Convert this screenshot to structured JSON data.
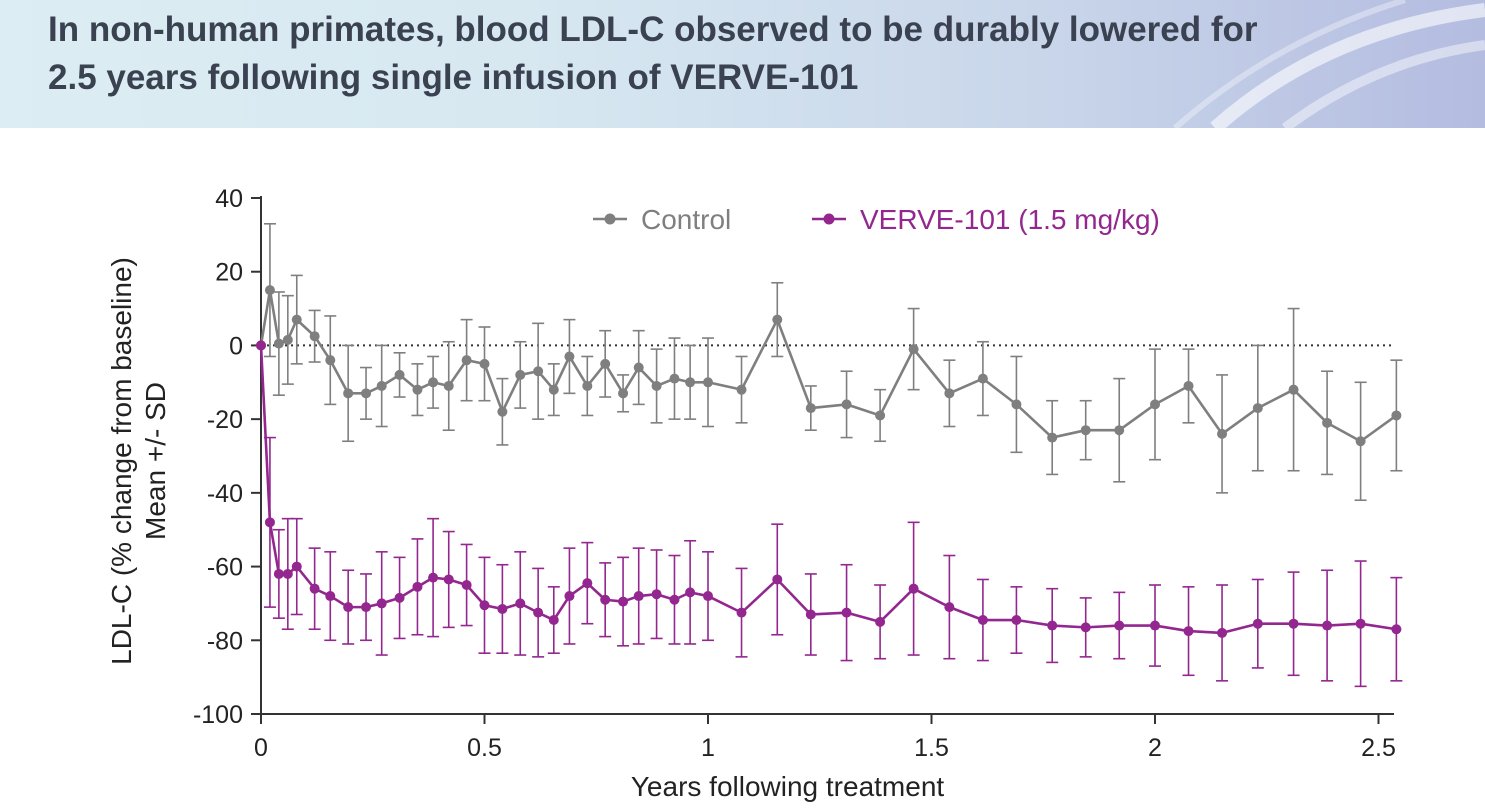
{
  "header": {
    "title_line1": "In non-human primates, blood LDL-C observed to be durably lowered for",
    "title_line2": "2.5 years following single infusion of VERVE-101"
  },
  "chart_data": {
    "type": "line",
    "xlabel": "Years following treatment",
    "ylabel_line1": "LDL-C (% change from baseline)",
    "ylabel_line2": "Mean +/- SD",
    "xlim": [
      0,
      2.55
    ],
    "ylim": [
      -100,
      40
    ],
    "xticks": [
      0,
      0.5,
      1,
      1.5,
      2,
      2.5
    ],
    "yticks": [
      40,
      20,
      0,
      -20,
      -40,
      -60,
      -80,
      -100
    ],
    "reference_line": 0,
    "legend_position": "top-center",
    "series": [
      {
        "name": "Control",
        "color": "#7f7f7f",
        "x": [
          0,
          0.02,
          0.04,
          0.06,
          0.08,
          0.12,
          0.155,
          0.195,
          0.235,
          0.27,
          0.31,
          0.35,
          0.385,
          0.42,
          0.46,
          0.5,
          0.54,
          0.58,
          0.62,
          0.655,
          0.69,
          0.73,
          0.77,
          0.81,
          0.845,
          0.885,
          0.925,
          0.96,
          1.0,
          1.075,
          1.155,
          1.23,
          1.31,
          1.385,
          1.46,
          1.54,
          1.615,
          1.69,
          1.77,
          1.845,
          1.92,
          2.0,
          2.075,
          2.15,
          2.23,
          2.31,
          2.385,
          2.46,
          2.54
        ],
        "y": [
          0,
          15,
          0.5,
          1.5,
          7,
          2.5,
          -4,
          -13,
          -13,
          -11,
          -8,
          -12,
          -10,
          -11,
          -4,
          -5,
          -18,
          -8,
          -7,
          -12,
          -3,
          -11,
          -5,
          -13,
          -6,
          -11,
          -9,
          -10,
          -10,
          -12,
          7,
          -17,
          -16,
          -19,
          -1,
          -13,
          -9,
          -16,
          -25,
          -23,
          -23,
          -16,
          -11,
          -24,
          -17,
          -12,
          -21,
          -26,
          -19
        ],
        "sd": [
          0,
          18,
          14,
          12,
          12,
          7,
          12,
          13,
          7,
          11,
          6,
          7,
          7,
          12,
          11,
          10,
          9,
          9,
          13,
          7,
          10,
          8,
          9,
          5,
          10,
          10,
          11,
          10,
          12,
          9,
          10,
          6,
          9,
          7,
          11,
          9,
          10,
          13,
          10,
          8,
          14,
          15,
          10,
          16,
          17,
          22,
          14,
          16,
          15
        ]
      },
      {
        "name": "VERVE-101 (1.5 mg/kg)",
        "color": "#93278f",
        "x": [
          0,
          0.02,
          0.04,
          0.06,
          0.08,
          0.12,
          0.155,
          0.195,
          0.235,
          0.27,
          0.31,
          0.35,
          0.385,
          0.42,
          0.46,
          0.5,
          0.54,
          0.58,
          0.62,
          0.655,
          0.69,
          0.73,
          0.77,
          0.81,
          0.845,
          0.885,
          0.925,
          0.96,
          1.0,
          1.075,
          1.155,
          1.23,
          1.31,
          1.385,
          1.46,
          1.54,
          1.615,
          1.69,
          1.77,
          1.845,
          1.92,
          2.0,
          2.075,
          2.15,
          2.23,
          2.31,
          2.385,
          2.46,
          2.54
        ],
        "y": [
          0,
          -48,
          -62,
          -62,
          -60,
          -66,
          -68,
          -71,
          -71,
          -70,
          -68.5,
          -65.5,
          -63,
          -63.5,
          -65,
          -70.5,
          -71.5,
          -70,
          -72.5,
          -74.5,
          -68,
          -64.5,
          -69,
          -69.5,
          -68,
          -67.5,
          -69,
          -67,
          -68,
          -72.5,
          -63.5,
          -73,
          -72.5,
          -75,
          -66,
          -71,
          -74.5,
          -74.5,
          -76,
          -76.5,
          -76,
          -76,
          -77.5,
          -78,
          -75.5,
          -75.5,
          -76,
          -75.5,
          -77
        ],
        "sd": [
          0,
          23,
          12,
          15,
          13,
          11,
          12,
          10,
          9,
          14,
          11,
          13,
          16,
          13,
          11,
          13,
          12,
          14,
          12,
          9,
          13,
          11,
          10,
          12,
          13,
          12,
          12,
          14,
          12,
          12,
          15,
          11,
          13,
          10,
          18,
          14,
          11,
          9,
          10,
          8,
          9,
          11,
          12,
          13,
          12,
          14,
          15,
          17,
          14
        ]
      }
    ]
  }
}
